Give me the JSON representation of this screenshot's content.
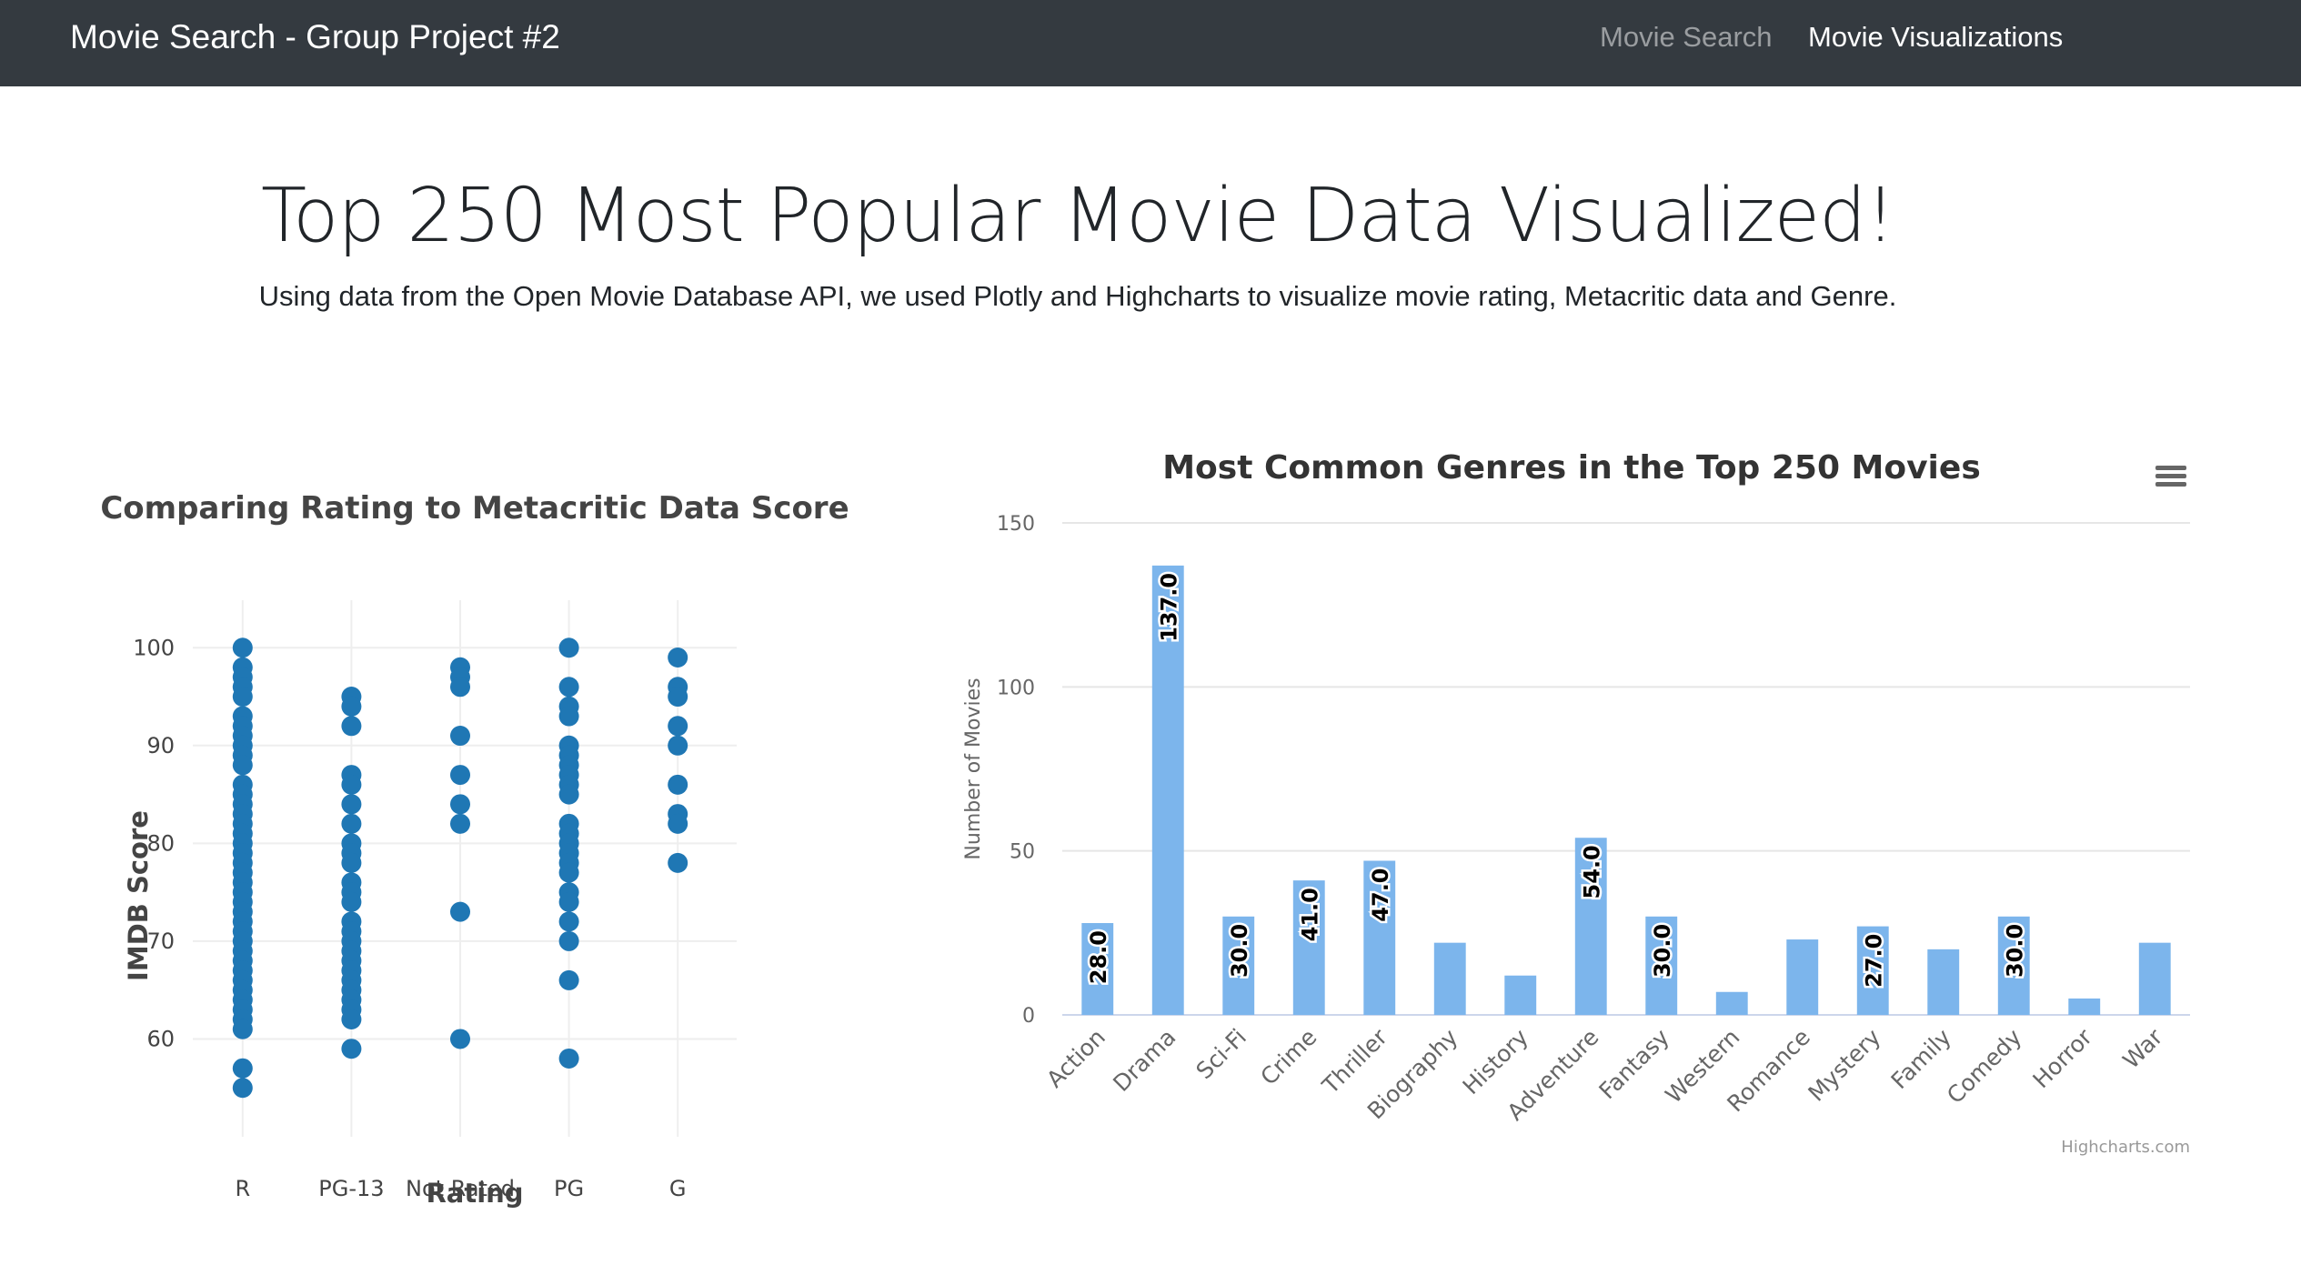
{
  "navbar": {
    "brand": "Movie Search - Group Project #2",
    "links": [
      {
        "label": "Movie Search",
        "active": false
      },
      {
        "label": "Movie Visualizations",
        "active": true
      }
    ],
    "bg_color": "#343a40"
  },
  "header": {
    "title": "Top 250 Most Popular Movie Data Visualized!",
    "subtitle": "Using data from the Open Movie Database API, we used Plotly and Highcharts to visualize movie rating, Metacritic data and Genre."
  },
  "chart_data": [
    {
      "type": "scatter",
      "library": "Plotly",
      "title": "Comparing Rating to Metacritic Data Score",
      "xlabel": "Rating",
      "ylabel": "IMDB Score",
      "categories": [
        "R",
        "PG-13",
        "Not Rated",
        "PG",
        "G"
      ],
      "ylim": [
        50,
        103
      ],
      "yticks": [
        60,
        70,
        80,
        90,
        100
      ],
      "grid": true,
      "marker_color": "#1f77b4",
      "points": {
        "R": [
          100,
          98,
          97,
          96,
          95,
          93,
          92,
          91,
          90,
          89,
          88,
          86,
          85,
          84,
          83,
          82,
          81,
          80,
          79,
          78,
          77,
          76,
          75,
          74,
          73,
          72,
          71,
          70,
          69,
          68,
          67,
          66,
          65,
          64,
          63,
          62,
          61,
          57,
          55
        ],
        "PG-13": [
          95,
          94,
          92,
          87,
          86,
          84,
          82,
          80,
          79,
          78,
          76,
          75,
          74,
          72,
          71,
          70,
          69,
          68,
          67,
          66,
          65,
          64,
          63,
          62,
          59
        ],
        "Not Rated": [
          98,
          97,
          96,
          91,
          87,
          84,
          82,
          73,
          60
        ],
        "PG": [
          100,
          96,
          94,
          93,
          90,
          89,
          88,
          87,
          86,
          85,
          82,
          81,
          80,
          79,
          78,
          77,
          75,
          74,
          72,
          70,
          66,
          58
        ],
        "G": [
          99,
          96,
          95,
          92,
          90,
          86,
          83,
          82,
          78
        ]
      }
    },
    {
      "type": "bar",
      "library": "Highcharts",
      "title": "Most Common Genres in the Top 250 Movies",
      "xlabel": "",
      "ylabel": "Number of Movies",
      "ylim": [
        0,
        150
      ],
      "yticks": [
        0,
        50,
        100,
        150
      ],
      "grid": true,
      "bar_color": "#7cb5ec",
      "categories": [
        "Action",
        "Drama",
        "Sci-Fi",
        "Crime",
        "Thriller",
        "Biography",
        "History",
        "Adventure",
        "Fantasy",
        "Western",
        "Romance",
        "Mystery",
        "Family",
        "Comedy",
        "Horror",
        "War"
      ],
      "values": [
        28,
        137,
        30,
        41,
        47,
        22,
        12,
        54,
        30,
        7,
        23,
        27,
        20,
        30,
        5,
        22
      ],
      "data_labels": [
        "28.0",
        "137.0",
        "30.0",
        "41.0",
        "47.0",
        "",
        "",
        "54.0",
        "30.0",
        "",
        "",
        "27.0",
        "",
        "30.0",
        "",
        ""
      ],
      "credits": "Highcharts.com",
      "menu_icon": "hamburger-menu-icon"
    }
  ]
}
